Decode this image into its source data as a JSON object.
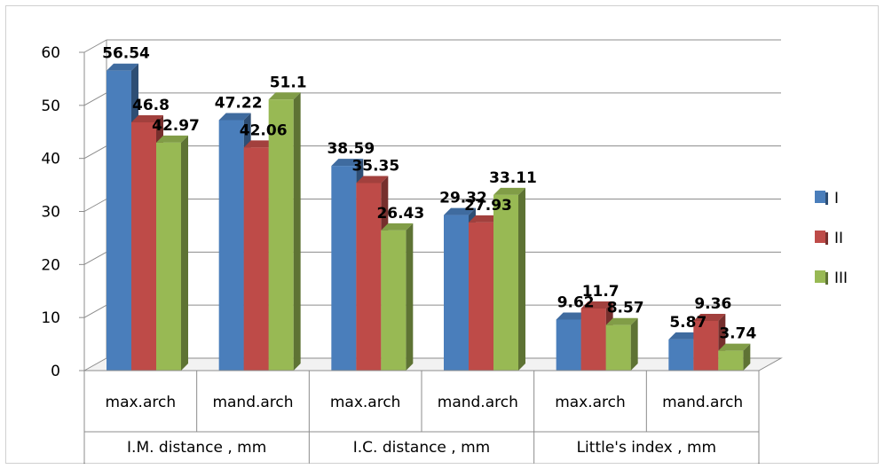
{
  "chart_data": {
    "type": "bar",
    "title": "",
    "xlabel": "",
    "ylabel": "",
    "ylim": [
      0,
      60
    ],
    "yticks": [
      0,
      10,
      20,
      30,
      40,
      50,
      60
    ],
    "grid": true,
    "legend_position": "right",
    "categories": [
      "max.arch",
      "mand.arch",
      "max.arch",
      "mand.arch",
      "max.arch",
      "mand.arch"
    ],
    "groups": [
      {
        "label": "I.M. distance , mm",
        "span": 2
      },
      {
        "label": "I.C. distance , mm",
        "span": 2
      },
      {
        "label": "Little's index , mm",
        "span": 2
      }
    ],
    "series": [
      {
        "name": "I",
        "color": "#4a7ebb",
        "values": [
          56.54,
          47.22,
          38.59,
          29.32,
          9.62,
          5.87
        ],
        "labels": [
          "56.54",
          "47.22",
          "38.59",
          "29.32",
          "9.62",
          "5.87"
        ]
      },
      {
        "name": "II",
        "color": "#be4b48",
        "values": [
          46.8,
          42.06,
          35.35,
          27.93,
          11.7,
          9.36
        ],
        "labels": [
          "46.8",
          "42.06",
          "35.35",
          "27.93",
          "11.7",
          "9.36"
        ]
      },
      {
        "name": "III",
        "color": "#98b954",
        "values": [
          42.97,
          51.1,
          26.43,
          33.11,
          8.57,
          3.74
        ],
        "labels": [
          "42.97",
          "51.1",
          "26.43",
          "33.11",
          "8.57",
          "3.74"
        ]
      }
    ]
  }
}
